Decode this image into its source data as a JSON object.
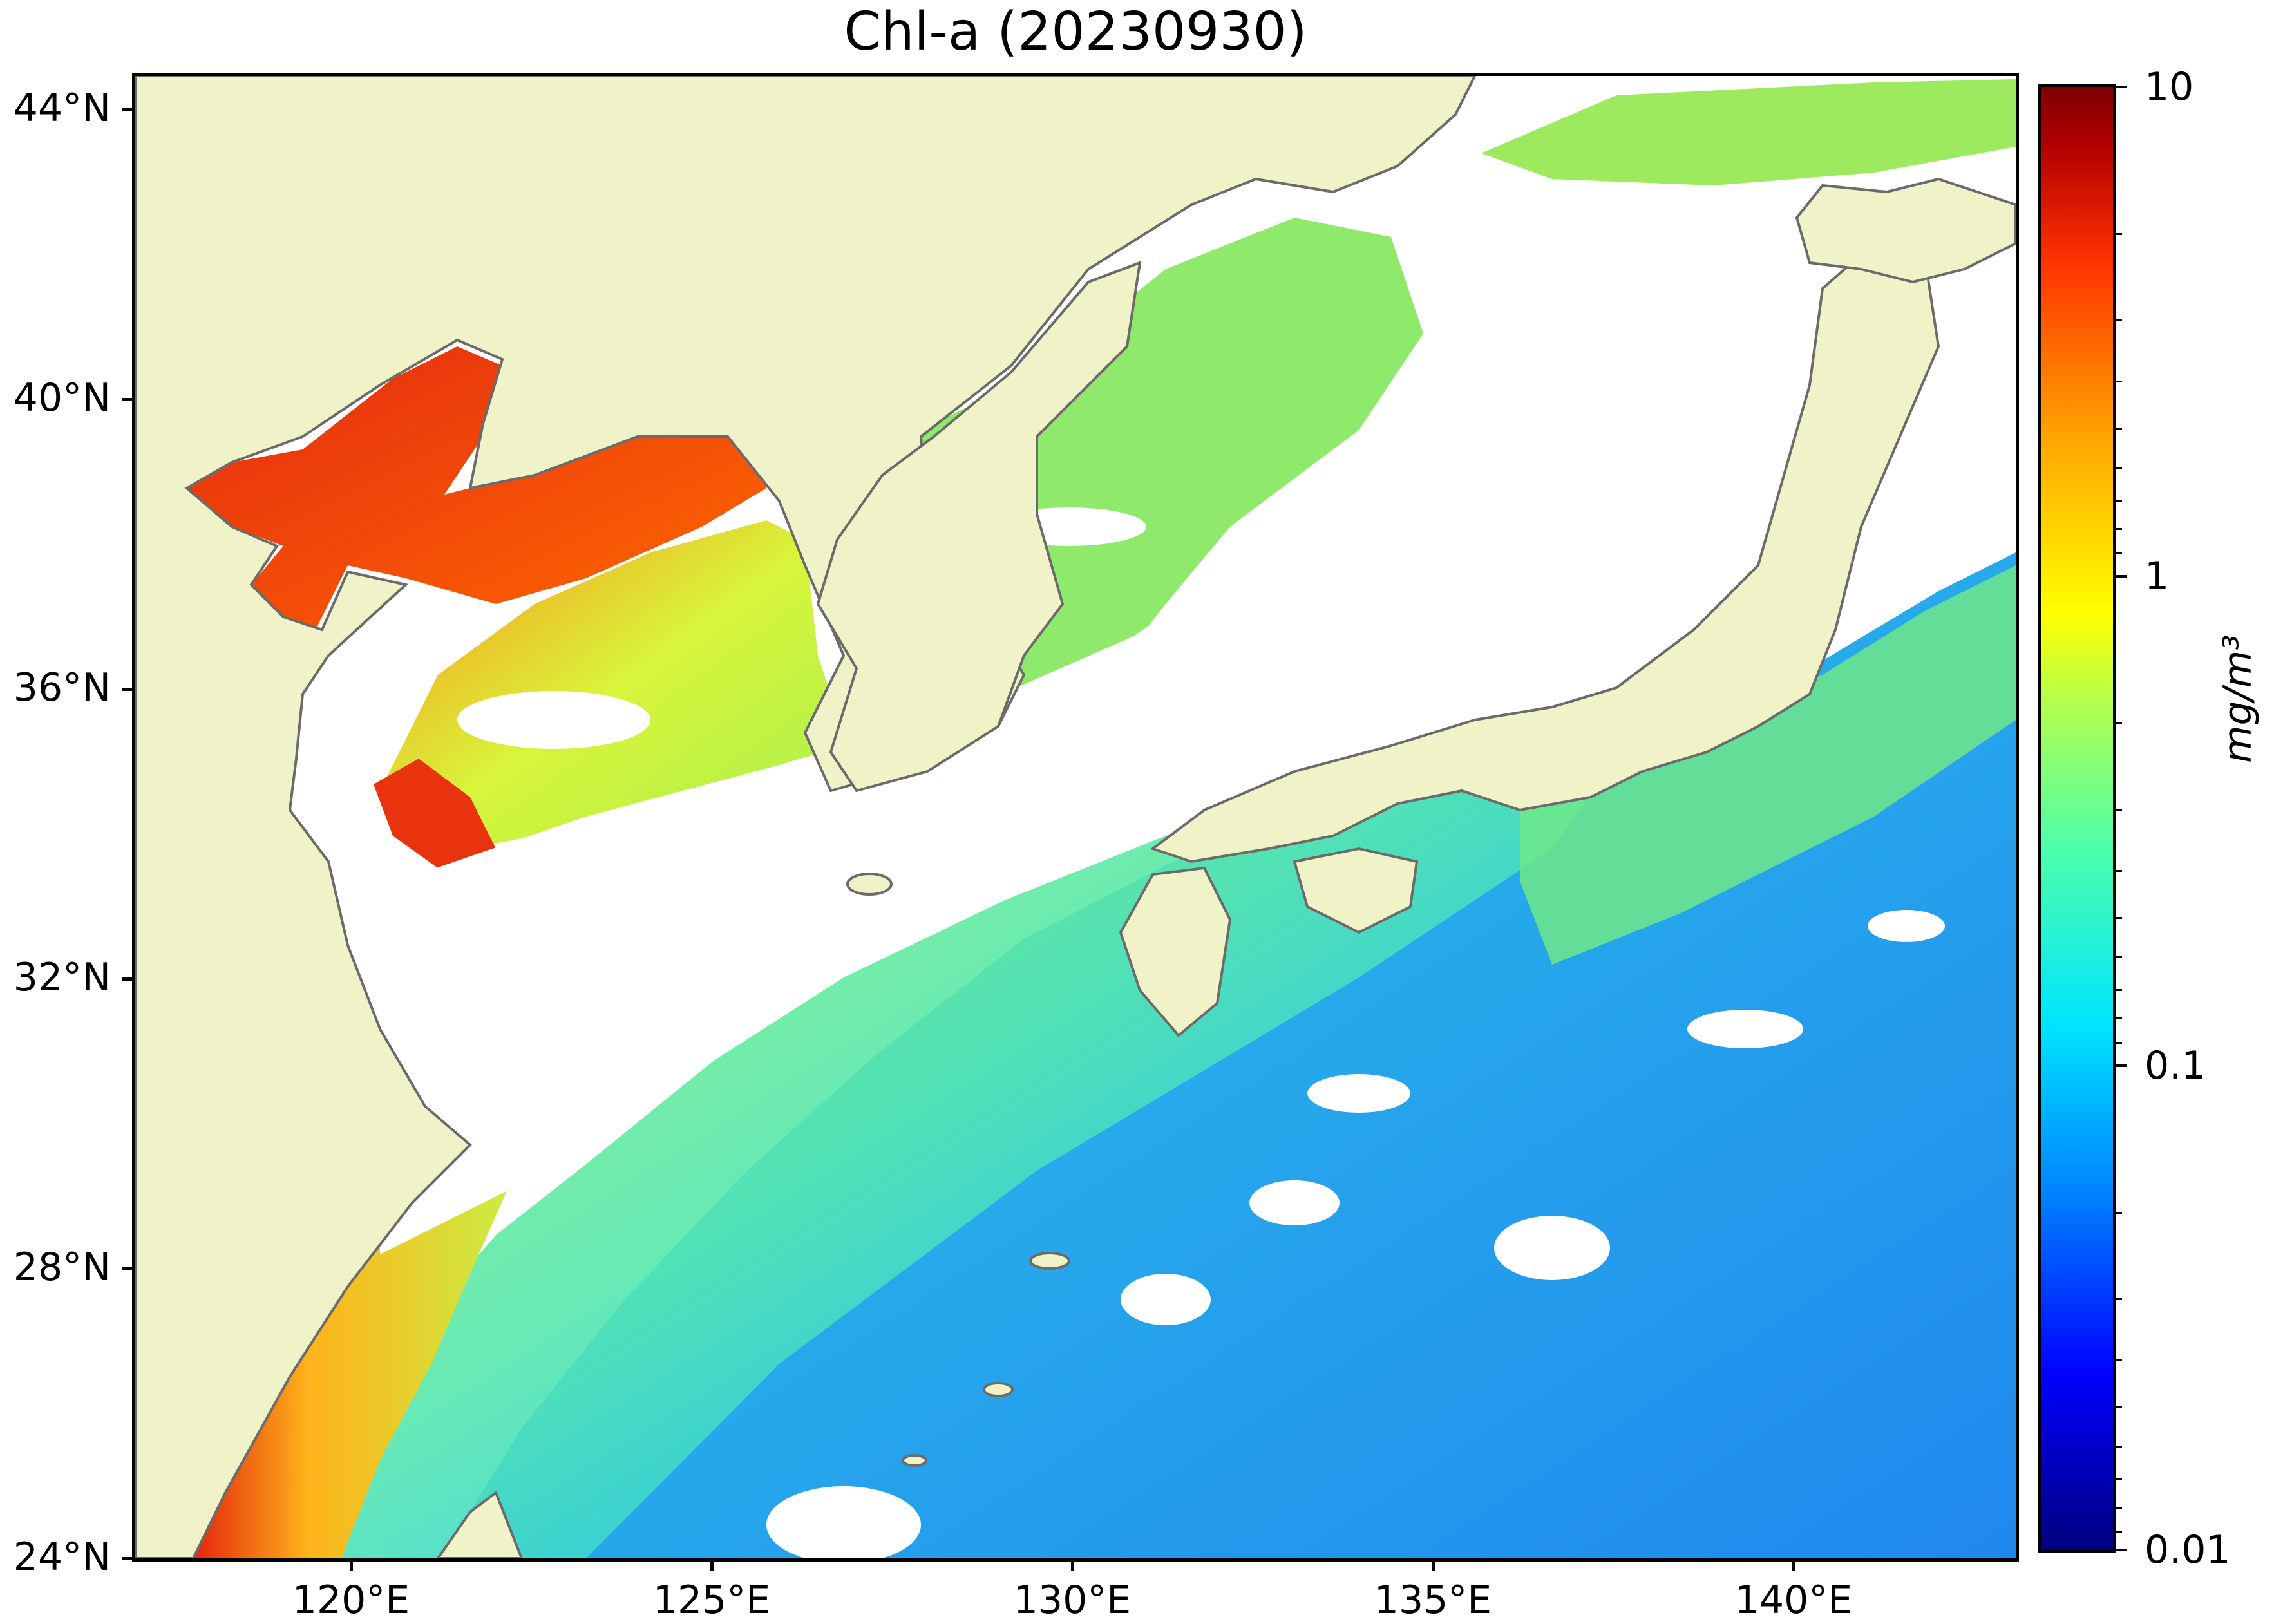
{
  "title": "Chl-a (20230930)",
  "lat_labels": [
    "44°N",
    "40°N",
    "36°N",
    "32°N",
    "28°N",
    "24°N"
  ],
  "lon_labels": [
    "120°E",
    "125°E",
    "130°E",
    "135°E",
    "140°E"
  ],
  "colorbar": {
    "labels": [
      "10",
      "1",
      "0.1",
      "0.01"
    ],
    "unit": "mg/m³",
    "scale": "log",
    "range": [
      0.01,
      10
    ]
  },
  "colors": {
    "land": "#eff3c7",
    "no_data": "#ffffff",
    "coastline": "#6b6b6b"
  },
  "chart_data": {
    "type": "heatmap",
    "title": "Chl-a (20230930)",
    "variable": "Chl-a",
    "date": "20230930",
    "lat_range": [
      24,
      44
    ],
    "lon_range": [
      117,
      143
    ],
    "lat_ticks": [
      44,
      40,
      36,
      32,
      28,
      24
    ],
    "lon_ticks": [
      120,
      125,
      130,
      135,
      140
    ],
    "colorbar_range": [
      0.01,
      10
    ],
    "colorbar_scale": "log",
    "colorbar_ticks": [
      10,
      1,
      0.1,
      0.01
    ],
    "unit": "mg/m³"
  }
}
